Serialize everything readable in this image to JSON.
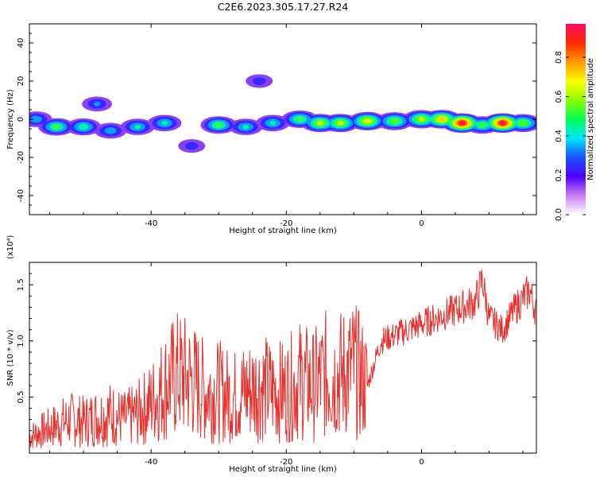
{
  "title": "C2E6.2023.305.17.27.R24",
  "chart_data": [
    {
      "type": "heatmap",
      "xlabel": "Height of straight line (km)",
      "ylabel": "Frequency (Hz)",
      "xlim": [
        -58,
        17
      ],
      "ylim": [
        -50,
        50
      ],
      "xticks": [
        -40,
        -20,
        0
      ],
      "yticks": [
        -40,
        -20,
        0,
        20,
        40
      ],
      "colorbar": {
        "label": "Normalized spectral amplitude",
        "ticks": [
          0.0,
          0.2,
          0.4,
          0.6,
          0.8
        ],
        "range": [
          0,
          0.97
        ]
      },
      "ridge": [
        {
          "h": -57,
          "f": 0,
          "a": 0.4
        },
        {
          "h": -54,
          "f": -4,
          "a": 0.55
        },
        {
          "h": -50,
          "f": -4,
          "a": 0.5
        },
        {
          "h": -48,
          "f": 8,
          "a": 0.35
        },
        {
          "h": -46,
          "f": -6,
          "a": 0.4
        },
        {
          "h": -42,
          "f": -4,
          "a": 0.45
        },
        {
          "h": -38,
          "f": -2,
          "a": 0.45
        },
        {
          "h": -34,
          "f": -14,
          "a": 0.3
        },
        {
          "h": -30,
          "f": -3,
          "a": 0.55
        },
        {
          "h": -26,
          "f": -4,
          "a": 0.45
        },
        {
          "h": -24,
          "f": 20,
          "a": 0.3
        },
        {
          "h": -22,
          "f": -2,
          "a": 0.45
        },
        {
          "h": -18,
          "f": 0,
          "a": 0.55
        },
        {
          "h": -15,
          "f": -2,
          "a": 0.65
        },
        {
          "h": -12,
          "f": -2,
          "a": 0.65
        },
        {
          "h": -8,
          "f": -1,
          "a": 0.7
        },
        {
          "h": -4,
          "f": -1,
          "a": 0.6
        },
        {
          "h": 0,
          "f": 0,
          "a": 0.65
        },
        {
          "h": 3,
          "f": 0,
          "a": 0.75
        },
        {
          "h": 6,
          "f": -2,
          "a": 0.95
        },
        {
          "h": 9,
          "f": -3,
          "a": 0.55
        },
        {
          "h": 12,
          "f": -2,
          "a": 0.95
        },
        {
          "h": 15,
          "f": -2,
          "a": 0.6
        }
      ]
    },
    {
      "type": "line",
      "xlabel": "Height of straight line (km)",
      "ylabel": "SNR (10 * v/v)",
      "y_multiplier": "(x10⁴)",
      "xlim": [
        -58,
        17
      ],
      "ylim": [
        0,
        1.7
      ],
      "xticks": [
        -40,
        -20,
        0
      ],
      "yticks": [
        0.5,
        1.0,
        1.5
      ],
      "series": [
        {
          "color": "#e8302c",
          "x": [
            -58,
            -56,
            -54,
            -52,
            -50,
            -48,
            -46,
            -44,
            -42,
            -40,
            -38,
            -36,
            -34,
            -32,
            -30,
            -28,
            -26,
            -24,
            -22,
            -20,
            -18,
            -16,
            -14,
            -12,
            -10,
            -8,
            -6,
            -4,
            -2,
            0,
            2,
            4,
            6,
            8,
            9,
            10,
            12,
            14,
            16,
            17
          ],
          "y": [
            0.15,
            0.2,
            0.25,
            0.3,
            0.28,
            0.32,
            0.35,
            0.3,
            0.35,
            0.45,
            0.6,
            0.7,
            0.65,
            0.55,
            0.55,
            0.5,
            0.55,
            0.6,
            0.55,
            0.55,
            0.65,
            0.6,
            0.7,
            0.7,
            0.75,
            0.6,
            1.0,
            1.05,
            1.1,
            1.15,
            1.2,
            1.25,
            1.3,
            1.35,
            1.55,
            1.2,
            1.1,
            1.3,
            1.45,
            1.25
          ]
        }
      ]
    }
  ]
}
